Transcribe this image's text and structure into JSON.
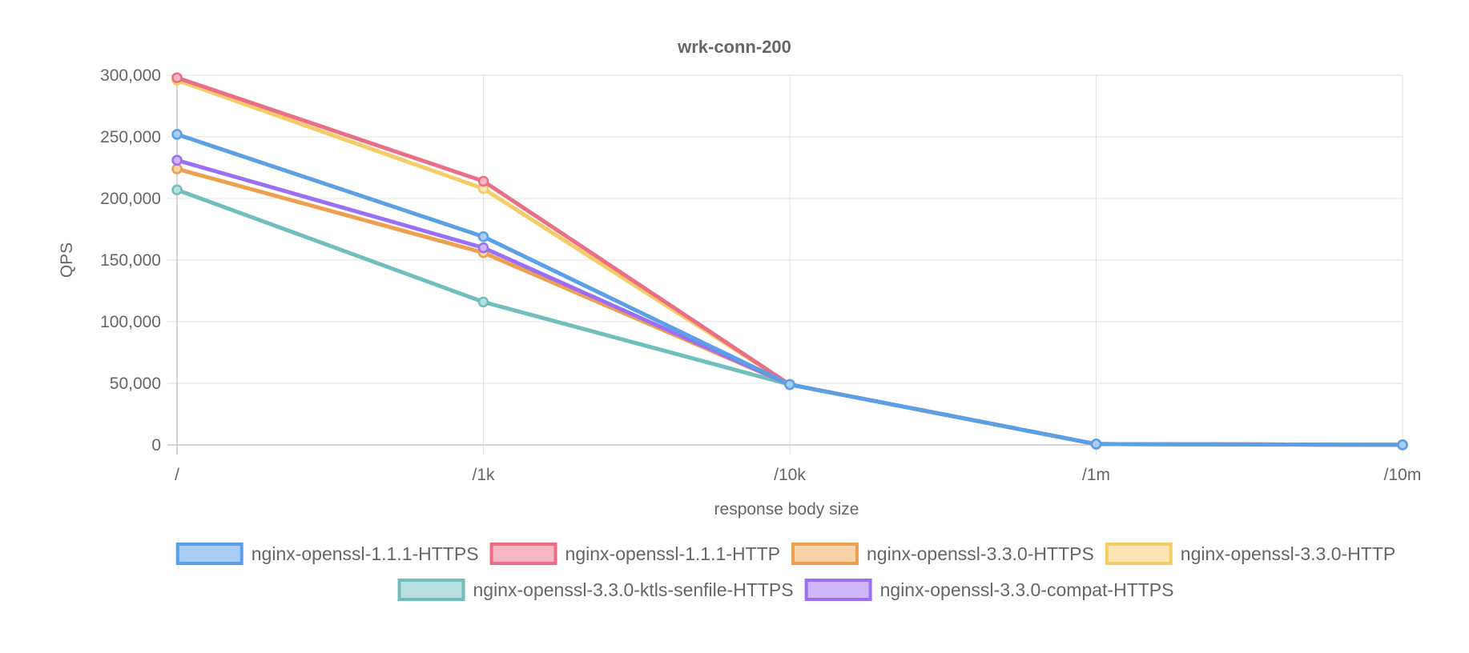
{
  "chart_data": {
    "type": "line",
    "title": "wrk-conn-200",
    "xlabel": "response body size",
    "ylabel": "QPS",
    "categories": [
      "/",
      "/1k",
      "/10k",
      "/1m",
      "/10m"
    ],
    "ylim": [
      0,
      300000
    ],
    "yticks": [
      0,
      50000,
      100000,
      150000,
      200000,
      250000,
      300000
    ],
    "ytick_labels": [
      "0",
      "50,000",
      "100,000",
      "150,000",
      "200,000",
      "250,000",
      "300,000"
    ],
    "grid": true,
    "legend_position": "bottom",
    "series": [
      {
        "name": "nginx-openssl-1.1.1-HTTPS",
        "color": "#5aa0e6",
        "fill": "#a9cdf4",
        "values": [
          252000,
          169000,
          49000,
          700,
          100
        ]
      },
      {
        "name": "nginx-openssl-1.1.1-HTTP",
        "color": "#ea6f86",
        "fill": "#f5b7c3",
        "values": [
          298000,
          214000,
          49000,
          700,
          100
        ]
      },
      {
        "name": "nginx-openssl-3.3.0-HTTPS",
        "color": "#efa04e",
        "fill": "#f8d2a9",
        "values": [
          224000,
          156000,
          49000,
          700,
          100
        ]
      },
      {
        "name": "nginx-openssl-3.3.0-HTTP",
        "color": "#f6cc66",
        "fill": "#fbe6b3",
        "values": [
          296000,
          208000,
          49000,
          700,
          100
        ]
      },
      {
        "name": "nginx-openssl-3.3.0-ktls-senfile-HTTPS",
        "color": "#70bfbd",
        "fill": "#b9dfde",
        "values": [
          207000,
          116000,
          49000,
          700,
          100
        ]
      },
      {
        "name": "nginx-openssl-3.3.0-compat-HTTPS",
        "color": "#9a6ef5",
        "fill": "#cdb7fa",
        "values": [
          231000,
          160000,
          49000,
          700,
          100
        ]
      }
    ],
    "draw_order": [
      4,
      2,
      5,
      3,
      1,
      0
    ]
  }
}
